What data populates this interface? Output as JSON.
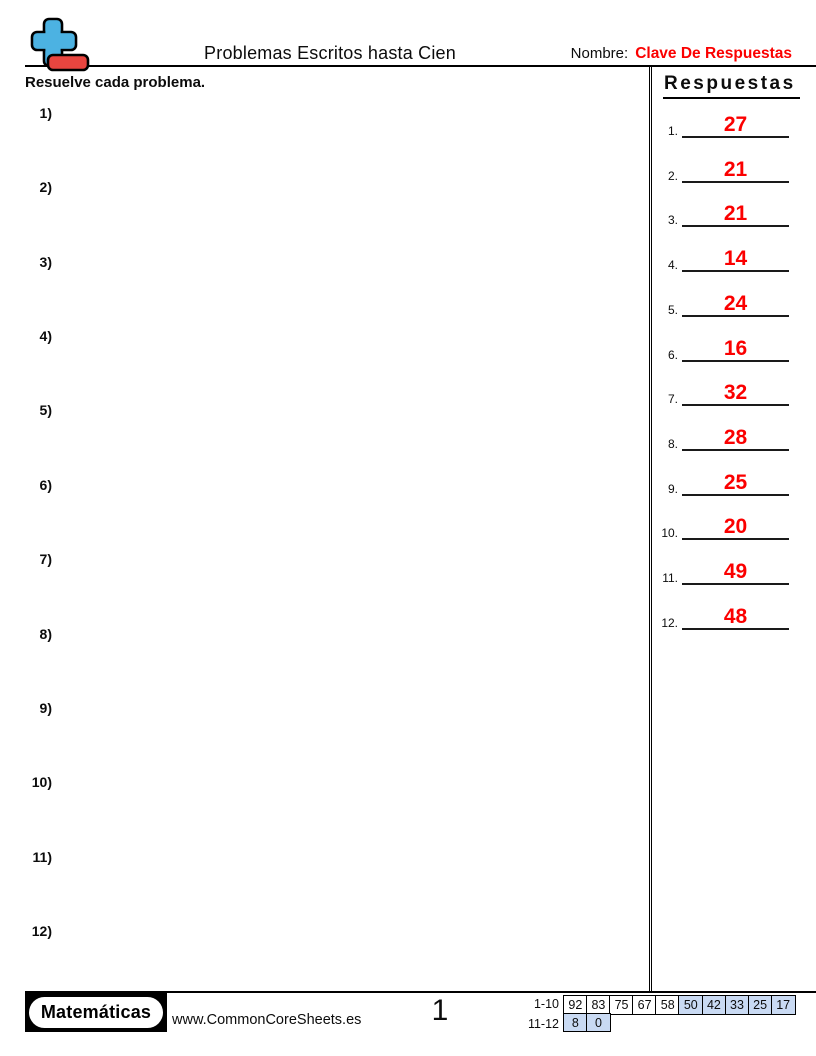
{
  "header": {
    "title": "Problemas Escritos hasta Cien",
    "name_label": "Nombre:",
    "name_value": "Clave De Respuestas",
    "instruction": "Resuelve cada problema."
  },
  "problems": {
    "items": [
      "1)",
      "2)",
      "3)",
      "4)",
      "5)",
      "6)",
      "7)",
      "8)",
      "9)",
      "10)",
      "11)",
      "12)"
    ]
  },
  "answers": {
    "heading": "Respuestas",
    "items": [
      {
        "num": "1.",
        "value": "27"
      },
      {
        "num": "2.",
        "value": "21"
      },
      {
        "num": "3.",
        "value": "21"
      },
      {
        "num": "4.",
        "value": "14"
      },
      {
        "num": "5.",
        "value": "24"
      },
      {
        "num": "6.",
        "value": "16"
      },
      {
        "num": "7.",
        "value": "32"
      },
      {
        "num": "8.",
        "value": "28"
      },
      {
        "num": "9.",
        "value": "25"
      },
      {
        "num": "10.",
        "value": "20"
      },
      {
        "num": "11.",
        "value": "49"
      },
      {
        "num": "12.",
        "value": "48"
      }
    ]
  },
  "footer": {
    "brand": "Matemáticas",
    "website": "www.CommonCoreSheets.es",
    "page_number": "1",
    "score_table": {
      "rows": [
        {
          "label": "1-10",
          "cells": [
            {
              "v": "92",
              "hl": false
            },
            {
              "v": "83",
              "hl": false
            },
            {
              "v": "75",
              "hl": false
            },
            {
              "v": "67",
              "hl": false
            },
            {
              "v": "58",
              "hl": false
            },
            {
              "v": "50",
              "hl": true
            },
            {
              "v": "42",
              "hl": true
            },
            {
              "v": "33",
              "hl": true
            },
            {
              "v": "25",
              "hl": true
            },
            {
              "v": "17",
              "hl": true
            }
          ]
        },
        {
          "label": "11-12",
          "cells": [
            {
              "v": "8",
              "hl": true
            },
            {
              "v": "0",
              "hl": true
            }
          ]
        }
      ]
    }
  },
  "colors": {
    "accent_red": "#fb0000",
    "icon_blue": "#4cb2e2",
    "icon_red": "#e8453f",
    "cell_highlight": "#c9daf3"
  }
}
